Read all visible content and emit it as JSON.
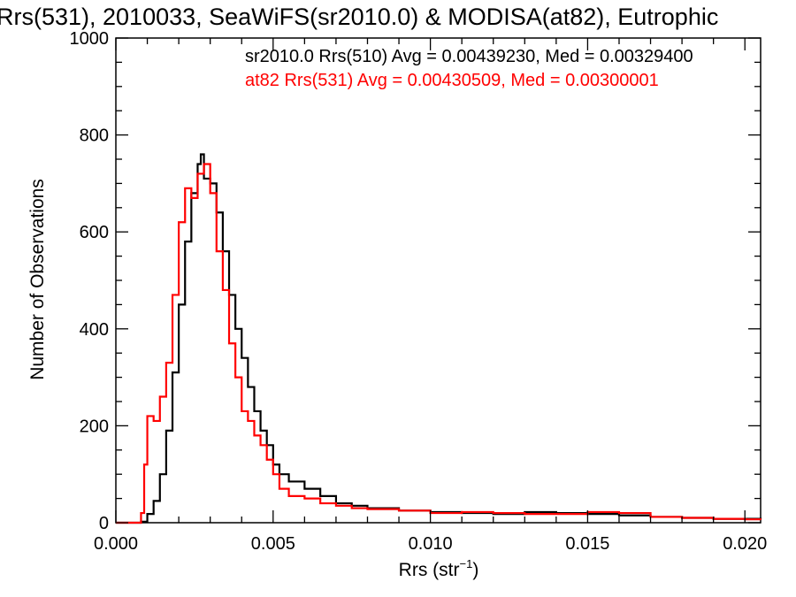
{
  "chart_data": {
    "type": "line",
    "title": "Rrs(531), 2010033, SeaWiFS(sr2010.0) & MODISA(at82), Eutrophic",
    "xlabel": "Rrs (str",
    "xlabel_sup": "−1",
    "xlabel_close": ")",
    "ylabel": "Number of Observations",
    "xlim": [
      0.0,
      0.0205
    ],
    "ylim": [
      0,
      1000
    ],
    "x_ticks": [
      0.0,
      0.005,
      0.01,
      0.015,
      0.02
    ],
    "x_tick_labels": [
      "0.000",
      "0.005",
      "0.010",
      "0.015",
      "0.020"
    ],
    "y_ticks": [
      0,
      200,
      400,
      600,
      800,
      1000
    ],
    "y_tick_labels": [
      "0",
      "200",
      "400",
      "600",
      "800",
      "1000"
    ],
    "grid": false,
    "annotations": [
      {
        "text": "sr2010.0 Rrs(510) Avg = 0.00439230, Med = 0.00329400",
        "color": "#000000"
      },
      {
        "text": "at82 Rrs(531) Avg = 0.00430509, Med = 0.00300001",
        "color": "#ff0000"
      }
    ],
    "series": [
      {
        "color": "#000000",
        "x": [
          0.0,
          0.0005,
          0.0008,
          0.001,
          0.0012,
          0.0014,
          0.0016,
          0.0018,
          0.002,
          0.0022,
          0.0024,
          0.0026,
          0.0027,
          0.0028,
          0.003,
          0.0032,
          0.0034,
          0.0036,
          0.0038,
          0.004,
          0.0042,
          0.0044,
          0.0046,
          0.0048,
          0.005,
          0.0052,
          0.0055,
          0.006,
          0.0065,
          0.007,
          0.0075,
          0.008,
          0.009,
          0.01,
          0.011,
          0.012,
          0.013,
          0.014,
          0.015,
          0.016,
          0.017,
          0.018,
          0.019,
          0.02,
          0.0205
        ],
        "y": [
          0,
          0,
          2,
          18,
          45,
          100,
          190,
          310,
          450,
          580,
          680,
          740,
          760,
          710,
          700,
          640,
          560,
          470,
          400,
          340,
          280,
          230,
          190,
          160,
          120,
          100,
          85,
          70,
          55,
          40,
          35,
          30,
          25,
          22,
          20,
          18,
          22,
          20,
          18,
          15,
          12,
          10,
          8,
          8,
          7
        ]
      },
      {
        "color": "#ff0000",
        "x": [
          0.0,
          0.0006,
          0.0008,
          0.0009,
          0.001,
          0.0012,
          0.0014,
          0.0016,
          0.0018,
          0.002,
          0.0022,
          0.0024,
          0.0026,
          0.0028,
          0.003,
          0.0032,
          0.0034,
          0.0036,
          0.0038,
          0.004,
          0.0042,
          0.0044,
          0.0046,
          0.0048,
          0.005,
          0.0052,
          0.0055,
          0.006,
          0.0065,
          0.007,
          0.0075,
          0.008,
          0.009,
          0.01,
          0.011,
          0.012,
          0.013,
          0.014,
          0.015,
          0.016,
          0.017,
          0.018,
          0.019,
          0.02,
          0.0205
        ],
        "y": [
          0,
          0,
          20,
          120,
          220,
          210,
          260,
          330,
          470,
          620,
          690,
          670,
          720,
          740,
          680,
          560,
          480,
          370,
          300,
          230,
          210,
          180,
          160,
          130,
          100,
          70,
          55,
          50,
          40,
          35,
          30,
          28,
          25,
          20,
          22,
          20,
          18,
          18,
          22,
          20,
          12,
          10,
          8,
          7,
          6
        ]
      }
    ]
  }
}
